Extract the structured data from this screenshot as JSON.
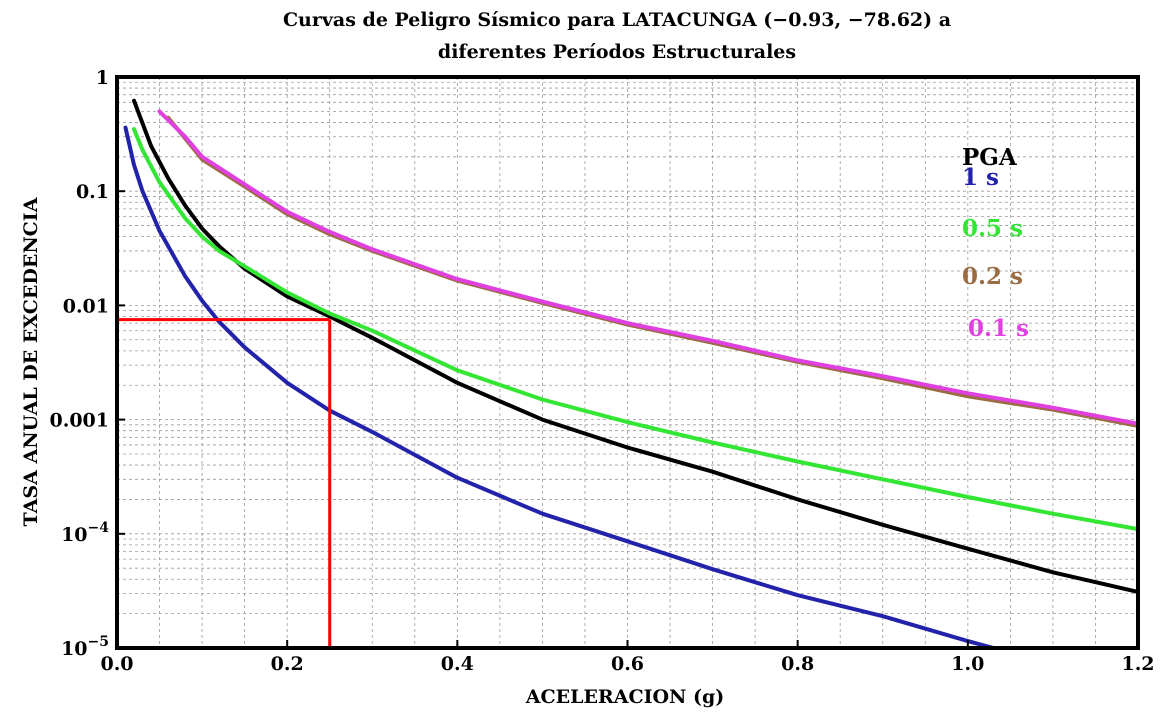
{
  "chart_data": {
    "type": "line",
    "title_line1": "Curvas de Peligro Sísmico para LATACUNGA (−0.93, −78.62) a",
    "title_line2": "diferentes Períodos Estructurales",
    "xlabel": "ACELERACION (g)",
    "ylabel": "TASA ANUAL DE EXCEDENCIA",
    "xlim": [
      0,
      1.2
    ],
    "ylim": [
      1e-05,
      1
    ],
    "yscale": "log",
    "grid": true,
    "legend_position": "top-right",
    "x_ticks": [
      {
        "value": 0,
        "label": "0.0"
      },
      {
        "value": 0.2,
        "label": "0.2"
      },
      {
        "value": 0.4,
        "label": "0.4"
      },
      {
        "value": 0.6,
        "label": "0.6"
      },
      {
        "value": 0.8,
        "label": "0.8"
      },
      {
        "value": 1.0,
        "label": "1.0"
      },
      {
        "value": 1.2,
        "label": "1.2"
      }
    ],
    "y_ticks": [
      {
        "value": 1,
        "label": "1",
        "exp": ""
      },
      {
        "value": 0.1,
        "label": "0.1",
        "exp": ""
      },
      {
        "value": 0.01,
        "label": "0.01",
        "exp": ""
      },
      {
        "value": 0.001,
        "label": "0.001",
        "exp": ""
      },
      {
        "value": 0.0001,
        "label": "10",
        "exp": "−4"
      },
      {
        "value": 1e-05,
        "label": "10",
        "exp": "−5"
      }
    ],
    "series": [
      {
        "name": "PGA",
        "color": "#000000",
        "x": [
          0.02,
          0.04,
          0.06,
          0.08,
          0.1,
          0.12,
          0.15,
          0.2,
          0.25,
          0.3,
          0.4,
          0.5,
          0.6,
          0.7,
          0.8,
          0.9,
          1.0,
          1.1,
          1.2
        ],
        "y": [
          0.62,
          0.25,
          0.13,
          0.075,
          0.047,
          0.033,
          0.021,
          0.012,
          0.008,
          0.0052,
          0.0021,
          0.001,
          0.00057,
          0.00035,
          0.0002,
          0.00012,
          7.4e-05,
          4.6e-05,
          3.1e-05
        ]
      },
      {
        "name": "1 s",
        "color": "#2222aa",
        "x": [
          0.01,
          0.02,
          0.03,
          0.05,
          0.08,
          0.1,
          0.12,
          0.15,
          0.2,
          0.25,
          0.3,
          0.4,
          0.5,
          0.6,
          0.7,
          0.8,
          0.9,
          1.0,
          1.03
        ],
        "y": [
          0.36,
          0.17,
          0.1,
          0.045,
          0.018,
          0.011,
          0.0072,
          0.0043,
          0.0021,
          0.0012,
          0.00078,
          0.00031,
          0.00015,
          8.6e-05,
          4.9e-05,
          2.9e-05,
          1.9e-05,
          1.15e-05,
          1e-05
        ]
      },
      {
        "name": "0.5 s",
        "color": "#33e633",
        "x": [
          0.02,
          0.03,
          0.05,
          0.08,
          0.1,
          0.12,
          0.15,
          0.2,
          0.25,
          0.3,
          0.4,
          0.5,
          0.6,
          0.7,
          0.8,
          0.9,
          1.0,
          1.1,
          1.2
        ],
        "y": [
          0.35,
          0.23,
          0.12,
          0.058,
          0.04,
          0.03,
          0.022,
          0.013,
          0.0085,
          0.006,
          0.0027,
          0.0015,
          0.00095,
          0.00063,
          0.00043,
          0.0003,
          0.00021,
          0.00015,
          0.00011
        ]
      },
      {
        "name": "0.2 s",
        "color": "#9b6b42",
        "x": [
          0.06,
          0.08,
          0.1,
          0.15,
          0.2,
          0.25,
          0.3,
          0.4,
          0.5,
          0.6,
          0.7,
          0.8,
          0.9,
          1.0,
          1.1,
          1.2
        ],
        "y": [
          0.44,
          0.29,
          0.19,
          0.11,
          0.063,
          0.042,
          0.03,
          0.0165,
          0.0105,
          0.0068,
          0.0047,
          0.0032,
          0.0023,
          0.0016,
          0.00122,
          0.00088
        ]
      },
      {
        "name": "0.1 s",
        "color": "#e040e0",
        "x": [
          0.05,
          0.08,
          0.1,
          0.15,
          0.2,
          0.25,
          0.3,
          0.4,
          0.5,
          0.6,
          0.7,
          0.8,
          0.9,
          1.0,
          1.1,
          1.2
        ],
        "y": [
          0.5,
          0.3,
          0.2,
          0.115,
          0.066,
          0.044,
          0.031,
          0.017,
          0.0108,
          0.007,
          0.0049,
          0.0033,
          0.0024,
          0.0017,
          0.00127,
          0.00092
        ]
      }
    ],
    "reference": {
      "x": 0.25,
      "y": 0.0075,
      "color": "#ff0000"
    }
  }
}
